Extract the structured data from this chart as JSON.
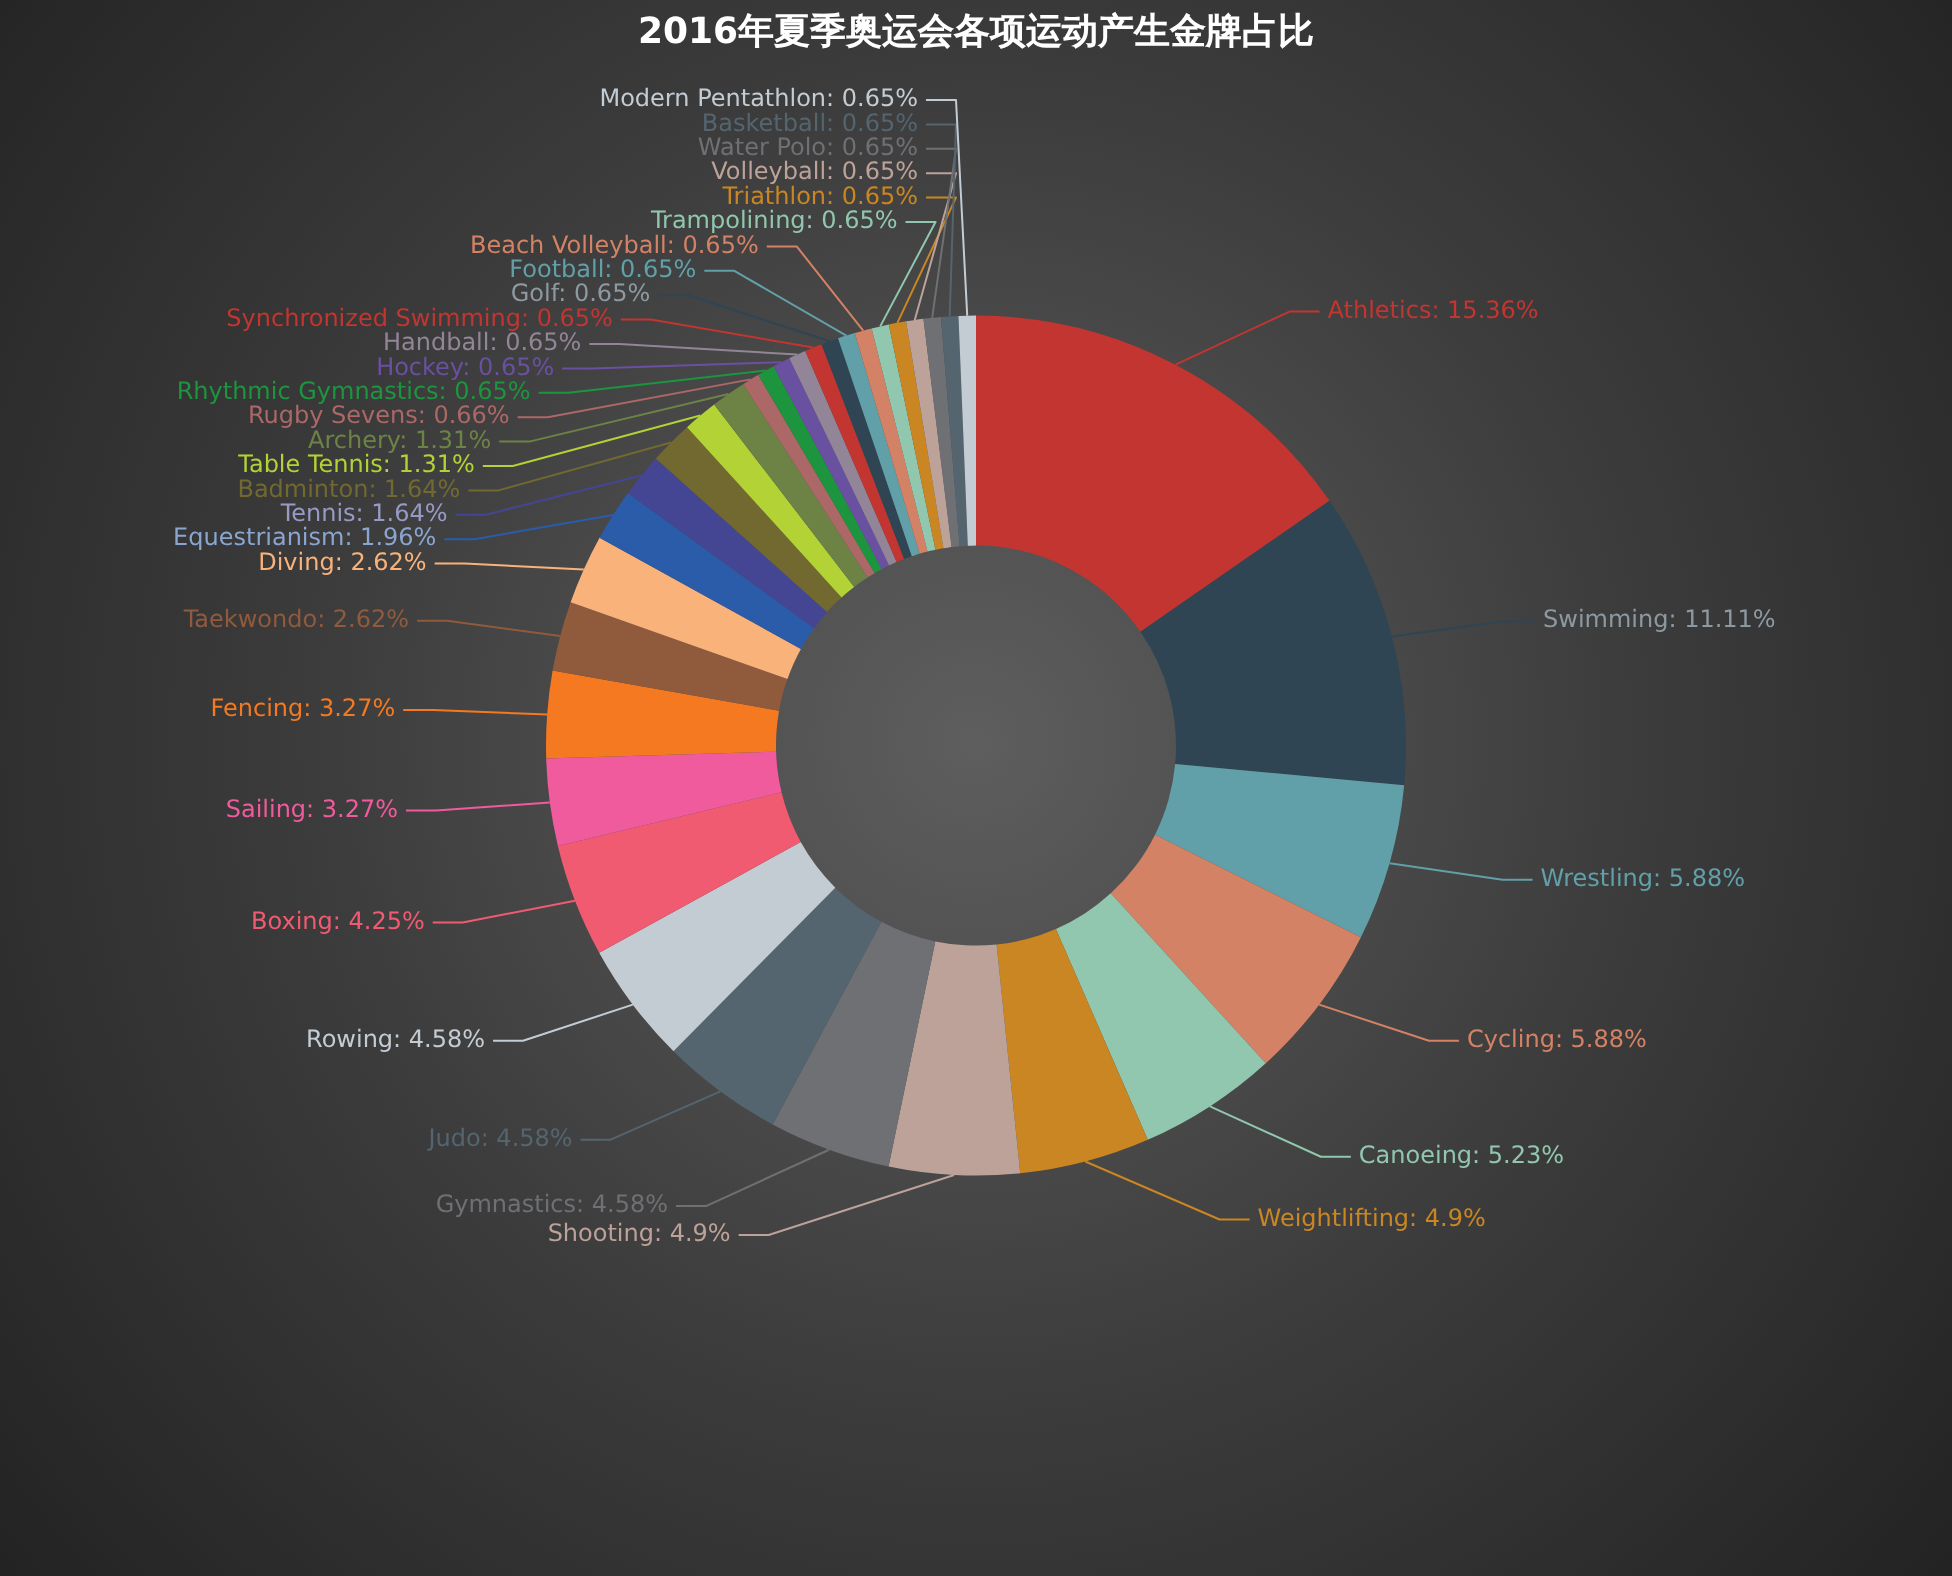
{
  "chart_data": {
    "type": "donut",
    "title": "2016年夏季奥运会各项运动产生金牌占比",
    "categories": [
      "Athletics",
      "Swimming",
      "Wrestling",
      "Cycling",
      "Canoeing",
      "Weightlifting",
      "Shooting",
      "Gymnastics",
      "Judo",
      "Rowing",
      "Boxing",
      "Sailing",
      "Fencing",
      "Taekwondo",
      "Diving",
      "Equestrianism",
      "Tennis",
      "Badminton",
      "Table Tennis",
      "Archery",
      "Rugby Sevens",
      "Rhythmic Gymnastics",
      "Hockey",
      "Handball",
      "Synchronized Swimming",
      "Golf",
      "Football",
      "Beach Volleyball",
      "Trampolining",
      "Triathlon",
      "Volleyball",
      "Water Polo",
      "Basketball",
      "Modern Pentathlon"
    ],
    "values": [
      15.36,
      11.11,
      5.88,
      5.88,
      5.23,
      4.9,
      4.9,
      4.58,
      4.58,
      4.58,
      4.25,
      3.27,
      3.27,
      2.62,
      2.62,
      1.96,
      1.64,
      1.64,
      1.31,
      1.31,
      0.66,
      0.65,
      0.65,
      0.65,
      0.65,
      0.65,
      0.65,
      0.65,
      0.65,
      0.65,
      0.65,
      0.65,
      0.65,
      0.65
    ],
    "colors": [
      "#c23531",
      "#2f4554",
      "#61a0a8",
      "#d48265",
      "#91c7ae",
      "#ca8622",
      "#bda29a",
      "#6e7074",
      "#546570",
      "#c4ccd3",
      "#f05b72",
      "#ef5b9c",
      "#f47920",
      "#905a3d",
      "#fab27b",
      "#2a5caa",
      "#444693",
      "#726930",
      "#b2d235",
      "#6d8346",
      "#ac6767",
      "#1d953f",
      "#6950a1",
      "#918597",
      "#c23531",
      "#2f4554",
      "#61a0a8",
      "#d48265",
      "#91c7ae",
      "#ca8622",
      "#bda29a",
      "#6e7074",
      "#546570",
      "#c4ccd3"
    ],
    "value_labels": [
      "15.36%",
      "11.11%",
      "5.88%",
      "5.88%",
      "5.23%",
      "4.9%",
      "4.9%",
      "4.58%",
      "4.58%",
      "4.58%",
      "4.25%",
      "3.27%",
      "3.27%",
      "2.62%",
      "2.62%",
      "1.96%",
      "1.64%",
      "1.64%",
      "1.31%",
      "1.31%",
      "0.66%",
      "0.65%",
      "0.65%",
      "0.65%",
      "0.65%",
      "0.65%",
      "0.65%",
      "0.65%",
      "0.65%",
      "0.65%",
      "0.65%",
      "0.65%",
      "0.65%",
      "0.65%"
    ]
  }
}
